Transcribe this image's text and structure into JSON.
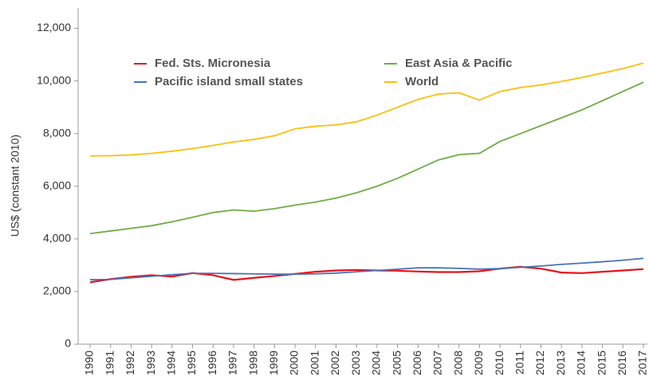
{
  "chart_data": {
    "type": "line",
    "y_axis_label": "US$ (constant 2010)",
    "categories": [
      "1990",
      "1991",
      "1992",
      "1993",
      "1994",
      "1995",
      "1996",
      "1997",
      "1998",
      "1999",
      "2000",
      "2001",
      "2002",
      "2003",
      "2004",
      "2005",
      "2006",
      "2007",
      "2008",
      "2009",
      "2010",
      "2011",
      "2012",
      "2013",
      "2014",
      "2015",
      "2016",
      "2017"
    ],
    "series": [
      {
        "name": "Fed. Sts. Micronesia",
        "color": "#e8101a",
        "values": [
          2350,
          2470,
          2560,
          2620,
          2570,
          2700,
          2620,
          2440,
          2520,
          2590,
          2670,
          2750,
          2800,
          2820,
          2800,
          2790,
          2760,
          2740,
          2740,
          2770,
          2870,
          2940,
          2870,
          2720,
          2700,
          2750,
          2800,
          2850
        ]
      },
      {
        "name": "Pacific island small states",
        "color": "#4a72b8",
        "values": [
          2450,
          2460,
          2520,
          2580,
          2640,
          2690,
          2690,
          2680,
          2670,
          2660,
          2660,
          2670,
          2700,
          2750,
          2800,
          2850,
          2900,
          2900,
          2880,
          2850,
          2870,
          2920,
          2970,
          3030,
          3080,
          3130,
          3190,
          3260
        ]
      },
      {
        "name": "East Asia & Pacific",
        "color": "#6fac46",
        "values": [
          4200,
          4300,
          4400,
          4500,
          4650,
          4820,
          5000,
          5100,
          5050,
          5150,
          5280,
          5400,
          5550,
          5750,
          6000,
          6300,
          6650,
          7000,
          7200,
          7250,
          7700,
          8000,
          8300,
          8600,
          8900,
          9250,
          9600,
          9950
        ]
      },
      {
        "name": "World",
        "color": "#fbbf10",
        "values": [
          7150,
          7160,
          7190,
          7250,
          7330,
          7430,
          7550,
          7680,
          7780,
          7920,
          8180,
          8280,
          8330,
          8450,
          8700,
          9000,
          9300,
          9500,
          9550,
          9270,
          9600,
          9750,
          9850,
          9980,
          10130,
          10300,
          10470,
          10680
        ]
      }
    ],
    "ylim": [
      0,
      12500
    ],
    "yticks": [
      0,
      {
        "value": 2000,
        "label": "2,000"
      },
      {
        "value": 4000,
        "label": "4,000"
      },
      {
        "value": 6000,
        "label": "6,000"
      },
      {
        "value": 8000,
        "label": "8,000"
      },
      {
        "value": 10000,
        "label": "10,000"
      },
      {
        "value": 12000,
        "label": "12,000"
      }
    ],
    "grid": false
  }
}
